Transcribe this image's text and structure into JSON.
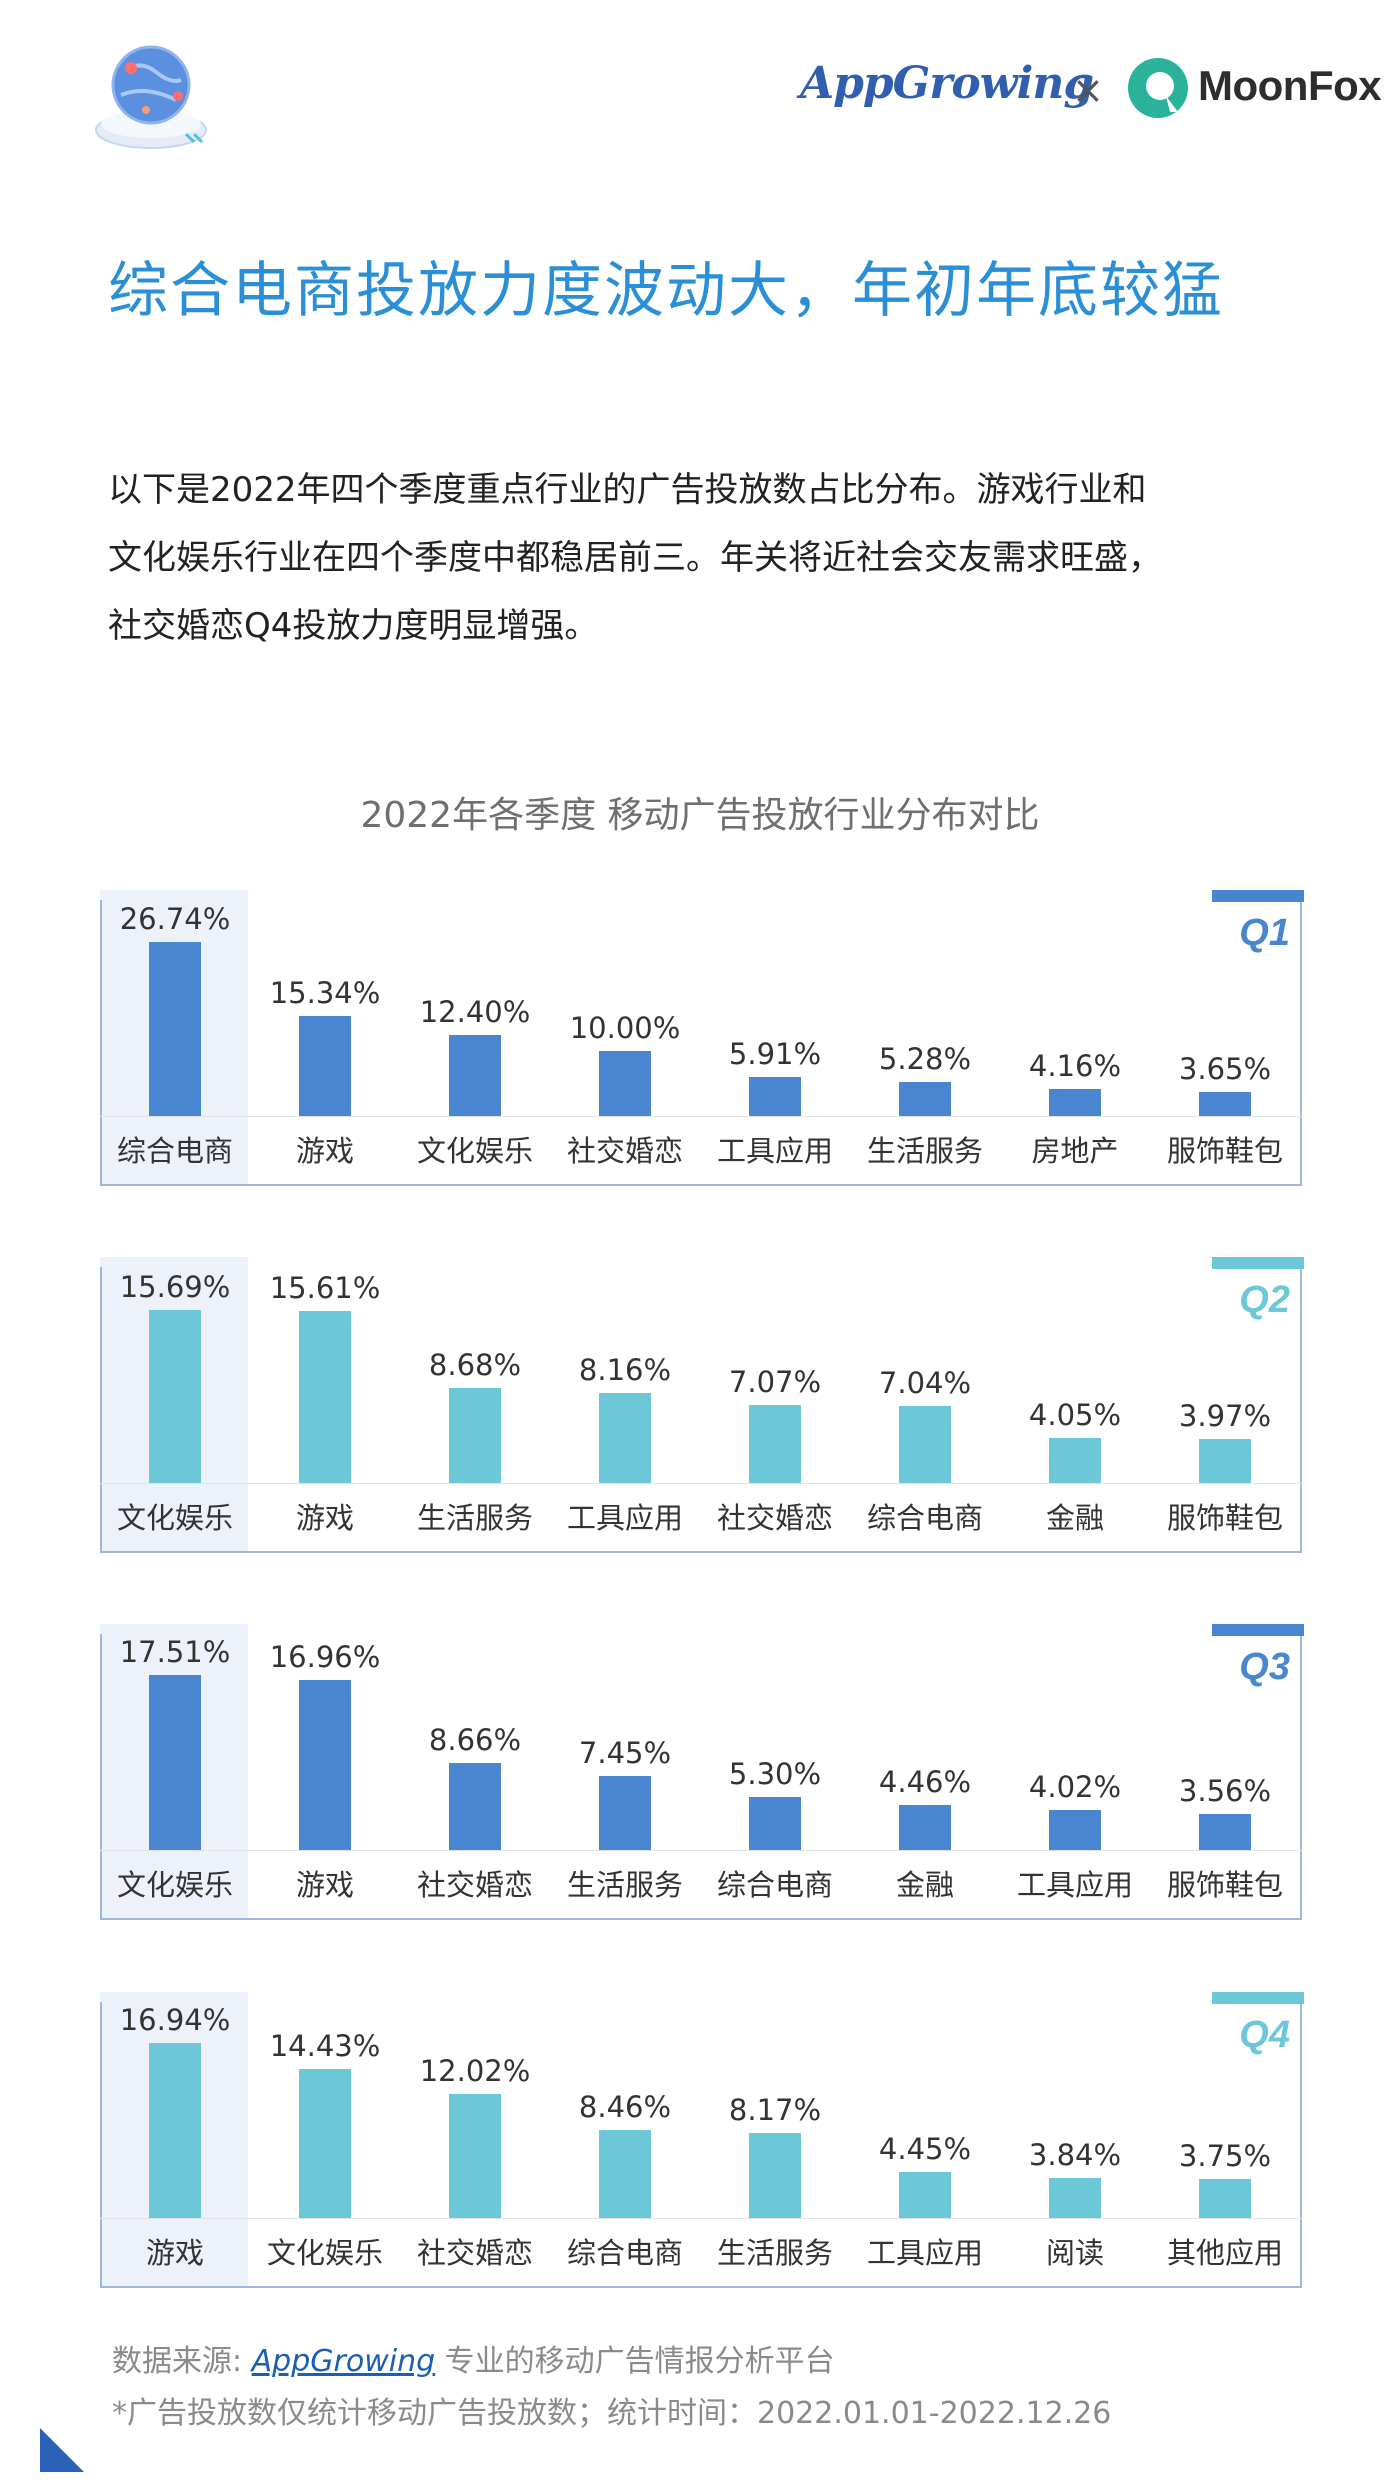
{
  "header": {
    "brand_left": "AppGrowing",
    "separator": "×",
    "brand_right": "MoonFox"
  },
  "headline": "综合电商投放力度波动大，年初年底较猛",
  "intro_lines": [
    "以下是2022年四个季度重点行业的广告投放数占比分布。游戏行业和",
    "文化娱乐行业在四个季度中都稳居前三。年关将近社会交友需求旺盛，",
    "社交婚恋Q4投放力度明显增强。"
  ],
  "chart_data": [
    {
      "type": "bar",
      "title": "2022年各季度 移动广告投放行业分布对比",
      "panel": "Q1",
      "color": "#4a86cf",
      "categories": [
        "综合电商",
        "游戏",
        "文化娱乐",
        "社交婚恋",
        "工具应用",
        "生活服务",
        "房地产",
        "服饰鞋包"
      ],
      "values": [
        26.74,
        15.34,
        12.4,
        10.0,
        5.91,
        5.28,
        4.16,
        3.65
      ],
      "value_labels": [
        "26.74%",
        "15.34%",
        "12.40%",
        "10.00%",
        "5.91%",
        "5.28%",
        "4.16%",
        "3.65%"
      ],
      "ylim": [
        0,
        27
      ]
    },
    {
      "type": "bar",
      "panel": "Q2",
      "color": "#6cc8d8",
      "categories": [
        "文化娱乐",
        "游戏",
        "生活服务",
        "工具应用",
        "社交婚恋",
        "综合电商",
        "金融",
        "服饰鞋包"
      ],
      "values": [
        15.69,
        15.61,
        8.68,
        8.16,
        7.07,
        7.04,
        4.05,
        3.97
      ],
      "value_labels": [
        "15.69%",
        "15.61%",
        "8.68%",
        "8.16%",
        "7.07%",
        "7.04%",
        "4.05%",
        "3.97%"
      ],
      "ylim": [
        0,
        16
      ]
    },
    {
      "type": "bar",
      "panel": "Q3",
      "color": "#4a86cf",
      "categories": [
        "文化娱乐",
        "游戏",
        "社交婚恋",
        "生活服务",
        "综合电商",
        "金融",
        "工具应用",
        "服饰鞋包"
      ],
      "values": [
        17.51,
        16.96,
        8.66,
        7.45,
        5.3,
        4.46,
        4.02,
        3.56
      ],
      "value_labels": [
        "17.51%",
        "16.96%",
        "8.66%",
        "7.45%",
        "5.30%",
        "4.46%",
        "4.02%",
        "3.56%"
      ],
      "ylim": [
        0,
        17.6
      ]
    },
    {
      "type": "bar",
      "panel": "Q4",
      "color": "#6cc8d8",
      "categories": [
        "游戏",
        "文化娱乐",
        "社交婚恋",
        "综合电商",
        "生活服务",
        "工具应用",
        "阅读",
        "其他应用"
      ],
      "values": [
        16.94,
        14.43,
        12.02,
        8.46,
        8.17,
        4.45,
        3.84,
        3.75
      ],
      "value_labels": [
        "16.94%",
        "14.43%",
        "12.02%",
        "8.46%",
        "8.17%",
        "4.45%",
        "3.84%",
        "3.75%"
      ],
      "ylim": [
        0,
        17
      ]
    }
  ],
  "footer": {
    "source_prefix": "数据来源: ",
    "source_link": "AppGrowing",
    "source_suffix": " 专业的移动广告情报分析平台",
    "note": "*广告投放数仅统计移动广告投放数；统计时间：2022.01.01-2022.12.26"
  }
}
